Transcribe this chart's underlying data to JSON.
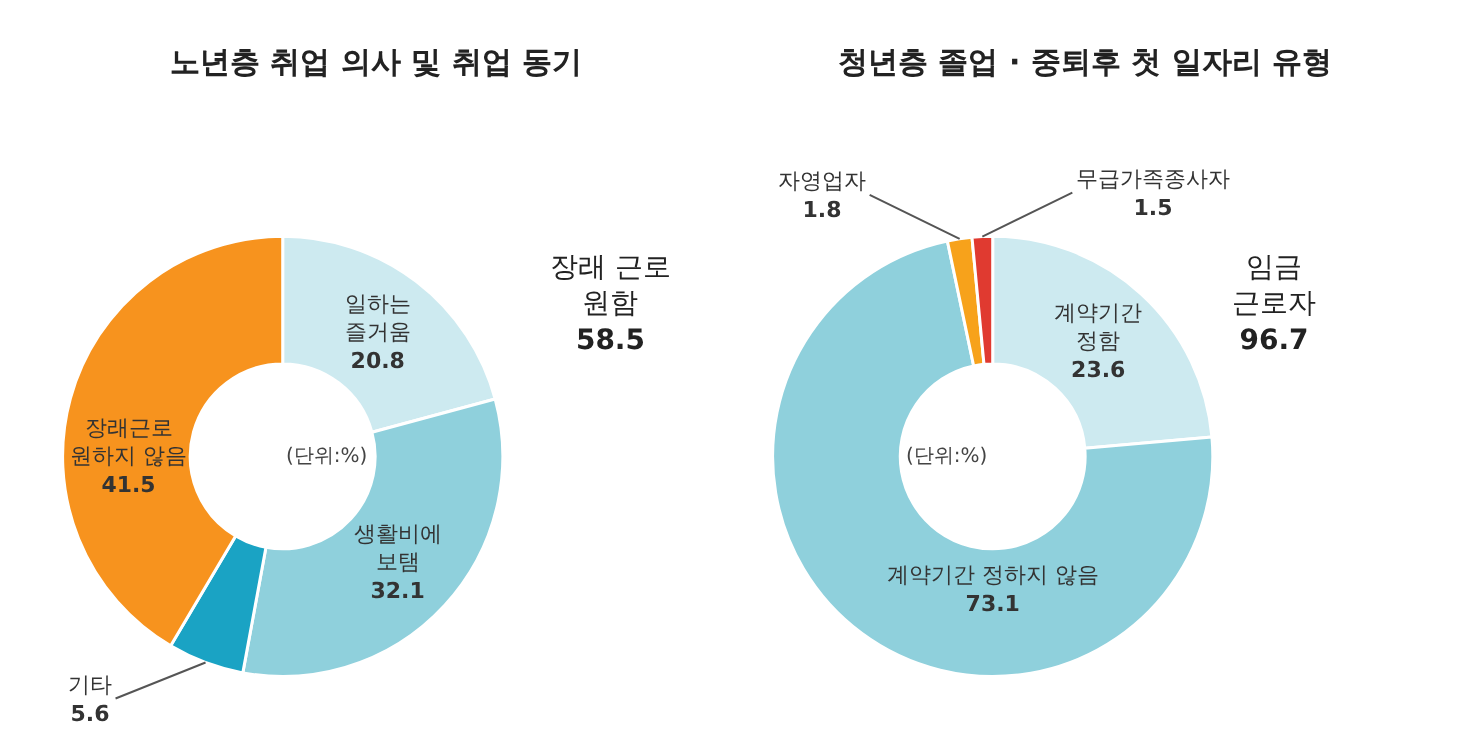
{
  "chart_data": [
    {
      "type": "donut",
      "title": "노년층 취업 의사 및 취업 동기",
      "categories": [
        "일하는\n즐거움",
        "생활비에\n보탬",
        "기타",
        "장래근로\n원하지 않음"
      ],
      "values": [
        20.8,
        32.1,
        5.6,
        41.5
      ],
      "colors": [
        "#cdeaf0",
        "#8fd0dc",
        "#1aa3c4",
        "#f7931e"
      ],
      "data_labels": true,
      "annotations": [
        "장래 근로\n원함\n58.5",
        "(단위:%)"
      ]
    },
    {
      "type": "donut",
      "title": "청년층 졸업 · 중퇴후 첫 일자리 유형",
      "categories": [
        "계약기간\n정함",
        "계약기간 정하지 않음",
        "자영업자",
        "무급가족종사자"
      ],
      "values": [
        23.6,
        73.1,
        1.8,
        1.5
      ],
      "colors": [
        "#cdeaf0",
        "#8fd0dc",
        "#f7a21b",
        "#e03a30"
      ],
      "data_labels": true,
      "annotations": [
        "임금\n근로자\n96.7",
        "(단위:%)"
      ]
    }
  ]
}
